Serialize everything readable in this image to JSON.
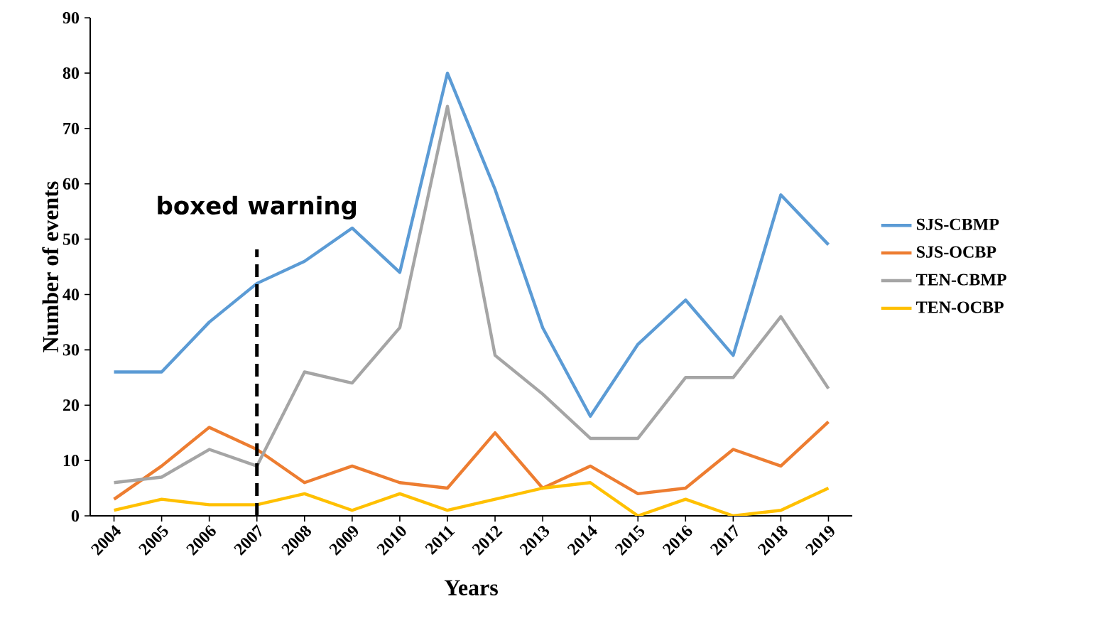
{
  "chart_data": {
    "type": "line",
    "xlabel": "Years",
    "ylabel": "Number of events",
    "x": [
      2004,
      2005,
      2006,
      2007,
      2008,
      2009,
      2010,
      2011,
      2012,
      2013,
      2014,
      2015,
      2016,
      2017,
      2018,
      2019
    ],
    "series": [
      {
        "name": "SJS-CBMP",
        "color": "#5b9bd5",
        "values": [
          26,
          26,
          35,
          42,
          46,
          52,
          44,
          80,
          59,
          34,
          18,
          31,
          39,
          29,
          58,
          49
        ]
      },
      {
        "name": "SJS-OCBP",
        "color": "#ed7d31",
        "values": [
          3,
          9,
          16,
          12,
          6,
          9,
          6,
          5,
          15,
          5,
          9,
          4,
          5,
          12,
          9,
          17
        ]
      },
      {
        "name": "TEN-CBMP",
        "color": "#a5a5a5",
        "values": [
          6,
          7,
          12,
          9,
          26,
          24,
          34,
          74,
          29,
          22,
          14,
          14,
          25,
          25,
          36,
          23
        ]
      },
      {
        "name": "TEN-OCBP",
        "color": "#ffc000",
        "values": [
          1,
          3,
          2,
          2,
          4,
          1,
          4,
          1,
          3,
          5,
          6,
          0,
          3,
          0,
          1,
          5
        ]
      }
    ],
    "xlim": [
      2003.5,
      2019.5
    ],
    "xticks": [
      2004,
      2005,
      2006,
      2007,
      2008,
      2009,
      2010,
      2011,
      2012,
      2013,
      2014,
      2015,
      2016,
      2017,
      2018,
      2019
    ],
    "ylim": [
      0,
      90
    ],
    "yticks": [
      0,
      10,
      20,
      30,
      40,
      50,
      60,
      70,
      80,
      90
    ],
    "ref_lines": [
      {
        "axis": "x",
        "value": 2007,
        "label": "boxed warning",
        "color": "#000000",
        "line_style": "dashed"
      }
    ],
    "legend": "right",
    "grid": false,
    "marker": "none",
    "line_style": "solid"
  }
}
